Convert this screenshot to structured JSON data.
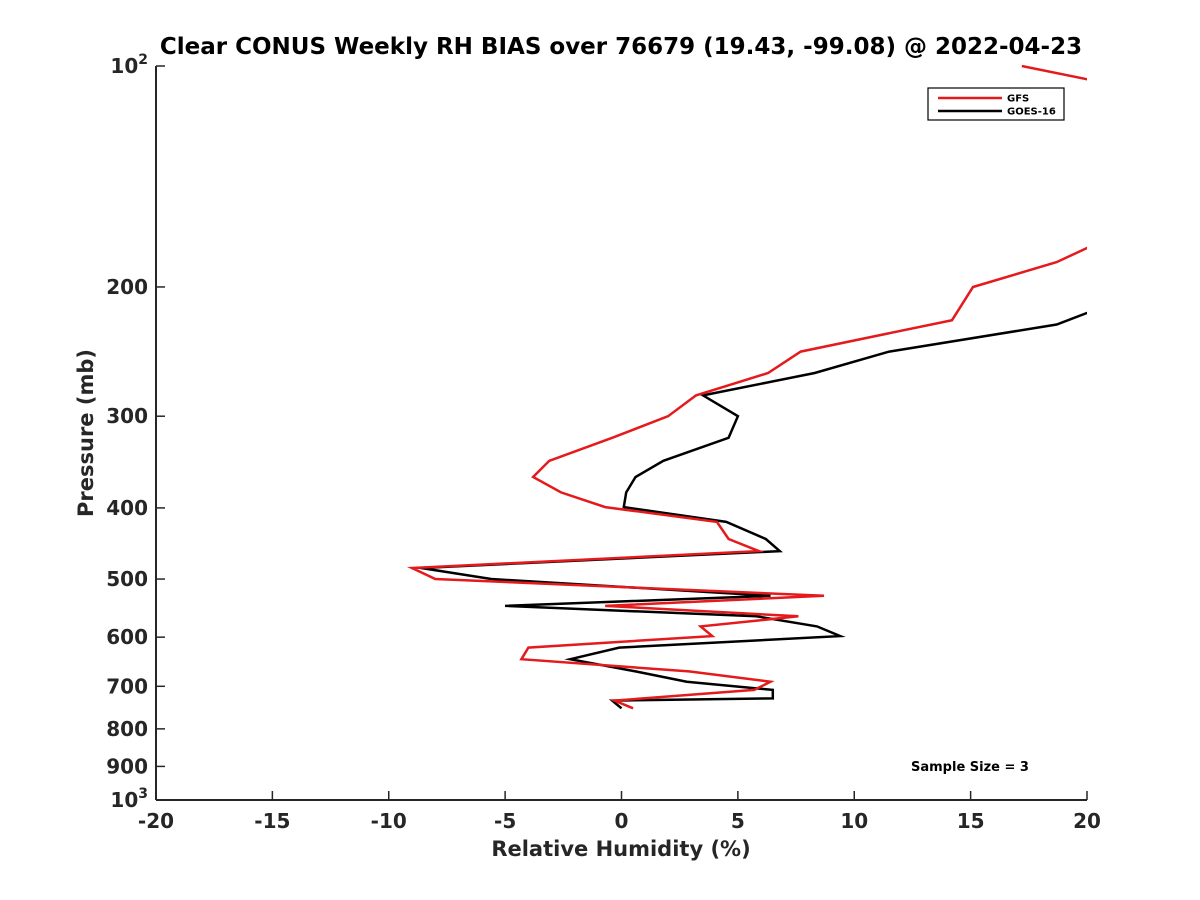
{
  "chart_data": {
    "type": "line",
    "title": "Clear CONUS Weekly RH BIAS over 76679 (19.43, -99.08) @ 2022-04-23",
    "xlabel": "Relative Humidity (%)",
    "ylabel": "Pressure (mb)",
    "xlim": [
      -20,
      20
    ],
    "ylim": [
      100,
      1000
    ],
    "y_scale": "log",
    "y_reversed": true,
    "grid": false,
    "legend_position": "top-right",
    "x_ticks": [
      "-20",
      "-15",
      "-10",
      "-5",
      "0",
      "5",
      "10",
      "15",
      "20"
    ],
    "y_ticks": [
      {
        "value": 100,
        "base": "10",
        "exp": "2"
      },
      {
        "value": 200,
        "base": "200",
        "exp": ""
      },
      {
        "value": 300,
        "base": "300",
        "exp": ""
      },
      {
        "value": 400,
        "base": "400",
        "exp": ""
      },
      {
        "value": 500,
        "base": "500",
        "exp": ""
      },
      {
        "value": 600,
        "base": "600",
        "exp": ""
      },
      {
        "value": 700,
        "base": "700",
        "exp": ""
      },
      {
        "value": 800,
        "base": "800",
        "exp": ""
      },
      {
        "value": 900,
        "base": "900",
        "exp": ""
      },
      {
        "value": 1000,
        "base": "10",
        "exp": "3"
      }
    ],
    "series": [
      {
        "name": "GFS",
        "color": "#e41a1c",
        "points": [
          [
            17.2,
            100
          ],
          [
            20.5,
            105
          ],
          [
            20.5,
            174
          ],
          [
            18.7,
            185
          ],
          [
            15.1,
            200
          ],
          [
            14.2,
            222
          ],
          [
            7.7,
            245
          ],
          [
            6.3,
            262
          ],
          [
            3.2,
            281
          ],
          [
            2.0,
            300
          ],
          [
            -0.4,
            321
          ],
          [
            -3.1,
            345
          ],
          [
            -3.8,
            363
          ],
          [
            -2.6,
            381
          ],
          [
            -0.7,
            399
          ],
          [
            4.1,
            418
          ],
          [
            4.6,
            441
          ],
          [
            5.9,
            458
          ],
          [
            -9.0,
            483
          ],
          [
            -8.0,
            500
          ],
          [
            8.7,
            527
          ],
          [
            -0.7,
            544
          ],
          [
            7.6,
            562
          ],
          [
            3.4,
            580
          ],
          [
            3.9,
            598
          ],
          [
            -4.0,
            620
          ],
          [
            -4.3,
            643
          ],
          [
            2.9,
            668
          ],
          [
            6.4,
            690
          ],
          [
            5.7,
            708
          ],
          [
            -0.3,
            732
          ],
          [
            0.5,
            750
          ]
        ]
      },
      {
        "name": "GOES-16",
        "color": "#000000",
        "points": [
          [
            20.5,
            214
          ],
          [
            18.7,
            225
          ],
          [
            11.5,
            245
          ],
          [
            8.3,
            262
          ],
          [
            3.5,
            281
          ],
          [
            5.0,
            300
          ],
          [
            4.6,
            321
          ],
          [
            1.8,
            345
          ],
          [
            0.6,
            363
          ],
          [
            0.2,
            381
          ],
          [
            0.1,
            399
          ],
          [
            4.5,
            418
          ],
          [
            6.2,
            441
          ],
          [
            6.8,
            458
          ],
          [
            -8.6,
            483
          ],
          [
            -5.6,
            500
          ],
          [
            6.4,
            527
          ],
          [
            -5.0,
            544
          ],
          [
            5.8,
            562
          ],
          [
            8.4,
            580
          ],
          [
            9.4,
            598
          ],
          [
            -0.1,
            620
          ],
          [
            -2.2,
            643
          ],
          [
            0.6,
            668
          ],
          [
            2.8,
            690
          ],
          [
            6.5,
            708
          ],
          [
            6.5,
            727
          ],
          [
            -0.4,
            732
          ],
          [
            0.0,
            750
          ]
        ]
      }
    ],
    "annotations": [
      "Sample Size = 3"
    ]
  }
}
